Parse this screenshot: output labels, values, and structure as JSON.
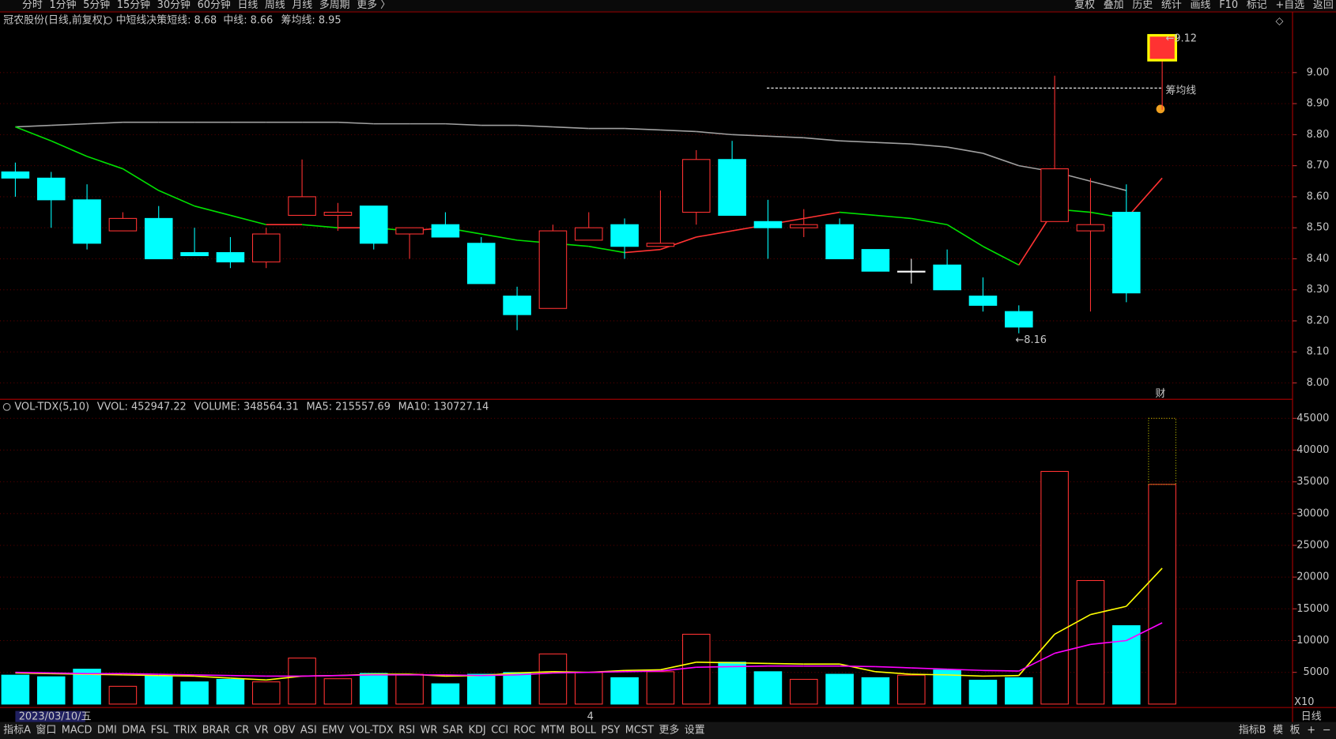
{
  "toolbar": {
    "left": [
      "分时",
      "1分钟",
      "5分钟",
      "15分钟",
      "30分钟",
      "60分钟",
      "日线",
      "周线",
      "月线",
      "多周期",
      "更多 〉"
    ],
    "active_index": 6,
    "right": [
      "复权",
      "叠加",
      "历史",
      "统计",
      "画线",
      "F10",
      "标记",
      "+自选",
      "返回"
    ]
  },
  "header": [
    {
      "text": "冠农股份(日线,前复权)",
      "color": "#c8c8c8"
    },
    {
      "text": "中短线决策",
      "color": "#c8c8c8"
    },
    {
      "text": "短线: 8.68",
      "color": "#ff3232"
    },
    {
      "text": "中线: 8.66",
      "color": "#ffff00"
    },
    {
      "text": "筹均线: 8.95",
      "color": "#e0e0e0"
    }
  ],
  "volume_header": [
    {
      "text": "VOL-TDX(5,10)",
      "color": "#c8c8c8"
    },
    {
      "text": "VVOL: 452947.22",
      "color": "#c8c8c8"
    },
    {
      "text": "VOLUME: 348564.31",
      "color": "#ffff00"
    },
    {
      "text": "MA5: 215557.69",
      "color": "#ffff00"
    },
    {
      "text": "MA10: 130727.14",
      "color": "#ff00ff"
    }
  ],
  "tabs": {
    "left": [
      "指标A",
      "窗口",
      "MACD",
      "DMI",
      "DMA",
      "FSL",
      "TRIX",
      "BRAR",
      "CR",
      "VR",
      "OBV",
      "ASI",
      "EMV",
      "VOL-TDX",
      "RSI",
      "WR",
      "SAR",
      "KDJ",
      "CCI",
      "ROC",
      "MTM",
      "BOLL",
      "PSY",
      "MCST",
      "更多",
      "设置"
    ],
    "active_index": 13,
    "right": [
      "指标B",
      "模",
      "板",
      "+",
      "−"
    ]
  },
  "chart_data": {
    "type": "candlestick",
    "open": [
      8.68,
      8.66,
      8.59,
      8.49,
      8.53,
      8.42,
      8.42,
      8.39,
      8.54,
      8.54,
      8.57,
      8.48,
      8.51,
      8.45,
      8.28,
      8.24,
      8.46,
      8.51,
      8.44,
      8.55,
      8.72,
      8.52,
      8.5,
      8.51,
      8.43,
      8.36,
      8.38,
      8.28,
      8.23,
      8.52,
      8.49,
      8.55,
      9.04
    ],
    "high": [
      8.71,
      8.68,
      8.64,
      8.55,
      8.57,
      8.5,
      8.47,
      8.5,
      8.72,
      8.58,
      8.57,
      8.5,
      8.55,
      8.47,
      8.31,
      8.51,
      8.55,
      8.53,
      8.62,
      8.75,
      8.78,
      8.59,
      8.56,
      8.53,
      8.43,
      8.4,
      8.43,
      8.34,
      8.25,
      8.99,
      8.66,
      8.64,
      9.12
    ],
    "low": [
      8.6,
      8.5,
      8.43,
      8.49,
      8.4,
      8.41,
      8.37,
      8.37,
      8.54,
      8.49,
      8.43,
      8.4,
      8.47,
      8.32,
      8.17,
      8.24,
      8.46,
      8.4,
      8.44,
      8.51,
      8.54,
      8.4,
      8.47,
      8.4,
      8.36,
      8.32,
      8.3,
      8.23,
      8.16,
      8.52,
      8.23,
      8.26,
      8.88
    ],
    "close": [
      8.66,
      8.59,
      8.45,
      8.53,
      8.4,
      8.41,
      8.39,
      8.48,
      8.6,
      8.55,
      8.45,
      8.5,
      8.47,
      8.32,
      8.22,
      8.49,
      8.5,
      8.44,
      8.45,
      8.72,
      8.54,
      8.5,
      8.51,
      8.4,
      8.36,
      8.36,
      8.3,
      8.25,
      8.18,
      8.69,
      8.51,
      8.29,
      9.12
    ],
    "gray_line": [
      8.825,
      8.83,
      8.835,
      8.84,
      8.84,
      8.84,
      8.84,
      8.84,
      8.84,
      8.84,
      8.835,
      8.835,
      8.835,
      8.83,
      8.83,
      8.825,
      8.82,
      8.82,
      8.815,
      8.81,
      8.8,
      8.795,
      8.79,
      8.78,
      8.775,
      8.77,
      8.76,
      8.74,
      8.7,
      8.68,
      8.65,
      8.62,
      null
    ],
    "mid_line": [
      8.825,
      8.78,
      8.73,
      8.69,
      8.62,
      8.57,
      8.54,
      8.51,
      8.51,
      8.5,
      8.5,
      8.49,
      8.5,
      8.48,
      8.46,
      8.45,
      8.44,
      8.42,
      8.43,
      8.47,
      8.49,
      8.51,
      8.53,
      8.55,
      8.54,
      8.53,
      8.51,
      8.44,
      8.38,
      8.56,
      8.55,
      8.53,
      8.66
    ],
    "up_color": "#ff3232",
    "down_color": "#00ffff",
    "gray_color": "#a0a0a0",
    "ylim": [
      7.95,
      9.19
    ],
    "yticks": [
      {
        "value": 9,
        "label": "9.00"
      },
      {
        "value": 8.9,
        "label": "8.90"
      },
      {
        "value": 8.8,
        "label": "8.80"
      },
      {
        "value": 8.7,
        "label": "8.70"
      },
      {
        "value": 8.6,
        "label": "8.60"
      },
      {
        "value": 8.5,
        "label": "8.50"
      },
      {
        "value": 8.4,
        "label": "8.40"
      },
      {
        "value": 8.3,
        "label": "8.30"
      },
      {
        "value": 8.2,
        "label": "8.20"
      },
      {
        "value": 8.1,
        "label": "8.10"
      },
      {
        "value": 8,
        "label": "8.00"
      }
    ],
    "grid": true,
    "chip_avg": 8.95,
    "annotations": {
      "high_label": "←9.12",
      "low_label": "←8.16",
      "chip_label": "筹均线",
      "fin_label": "财"
    },
    "volume": {
      "values": [
        4560,
        4300,
        5500,
        2800,
        4430,
        3500,
        3900,
        3500,
        7250,
        4000,
        4830,
        4700,
        3200,
        4700,
        4970,
        7900,
        4970,
        4160,
        5100,
        11000,
        6600,
        5100,
        3900,
        4700,
        4160,
        4560,
        5370,
        3760,
        4160,
        36640,
        19460,
        12350,
        34600
      ],
      "forecast_max": 45000,
      "ma5": [
        4900,
        4800,
        4700,
        4600,
        4500,
        4400,
        4100,
        3800,
        4400,
        4500,
        4700,
        4700,
        4400,
        4500,
        4900,
        5100,
        5000,
        5300,
        5400,
        6600,
        6500,
        6400,
        6300,
        6300,
        5100,
        4700,
        4600,
        4400,
        4500,
        11000,
        14100,
        15400,
        21400
      ],
      "ma10": [
        5000,
        4900,
        4800,
        4800,
        4700,
        4600,
        4500,
        4400,
        4400,
        4500,
        4600,
        4600,
        4600,
        4500,
        4600,
        4900,
        5000,
        5100,
        5200,
        5800,
        5900,
        6000,
        6000,
        6000,
        5900,
        5700,
        5500,
        5300,
        5200,
        8000,
        9400,
        10000,
        12800
      ],
      "ma5_color": "#ffff00",
      "ma10_color": "#ff00ff",
      "ylim": [
        0,
        48000
      ],
      "yticks": [
        5000,
        10000,
        15000,
        20000,
        25000,
        30000,
        35000,
        40000,
        45000
      ],
      "multiplier_label": "X10"
    },
    "date_label": "2023/03/10/五",
    "month_label": "4",
    "period_label": "日线"
  }
}
